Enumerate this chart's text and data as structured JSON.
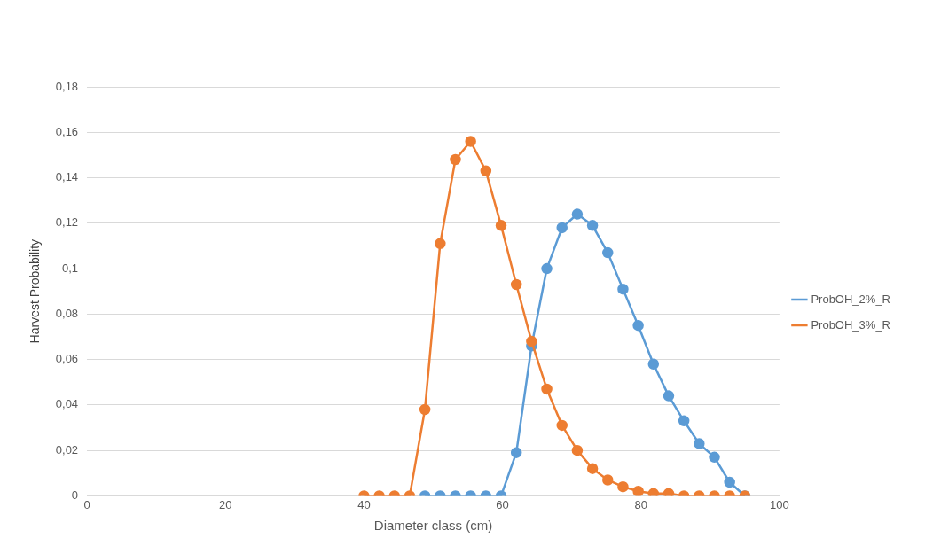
{
  "chart_data": {
    "type": "line",
    "xlabel": "Diameter class (cm)",
    "ylabel": "Harvest Probability",
    "xlim": [
      0,
      100
    ],
    "xticks": [
      0,
      20,
      40,
      60,
      80,
      100
    ],
    "ylim": [
      0,
      0.18
    ],
    "yticks": [
      {
        "value": 0,
        "label": "0"
      },
      {
        "value": 0.02,
        "label": "0,02"
      },
      {
        "value": 0.04,
        "label": "0,04"
      },
      {
        "value": 0.06,
        "label": "0,06"
      },
      {
        "value": 0.08,
        "label": "0,08"
      },
      {
        "value": 0.1,
        "label": "0,1"
      },
      {
        "value": 0.12,
        "label": "0,12"
      },
      {
        "value": 0.14,
        "label": "0,14"
      },
      {
        "value": 0.16,
        "label": "0,16"
      },
      {
        "value": 0.18,
        "label": "0,18"
      }
    ],
    "grid": "y",
    "legend": "right",
    "marker": "circle",
    "line_style": "solid",
    "series": [
      {
        "name": "ProbOH_2%_R",
        "color": "#5b9bd5",
        "x": [
          48.8,
          51,
          53.2,
          55.4,
          57.6,
          59.8,
          62,
          64.2,
          66.4,
          68.6,
          70.8,
          73,
          75.2,
          77.4,
          79.6,
          81.8,
          84,
          86.2,
          88.4,
          90.6,
          92.8,
          95
        ],
        "values": [
          0,
          0,
          0,
          0,
          0,
          0,
          0.019,
          0.066,
          0.1,
          0.118,
          0.124,
          0.119,
          0.107,
          0.091,
          0.075,
          0.058,
          0.044,
          0.033,
          0.023,
          0.017,
          0.006,
          0
        ]
      },
      {
        "name": "ProbOH_3%_R",
        "color": "#ed7d31",
        "x": [
          40,
          42.2,
          44.4,
          46.6,
          48.8,
          51,
          53.2,
          55.4,
          57.6,
          59.8,
          62,
          64.2,
          66.4,
          68.6,
          70.8,
          73,
          75.2,
          77.4,
          79.6,
          81.8,
          84,
          86.2,
          88.4,
          90.6,
          92.8,
          95
        ],
        "values": [
          0,
          0,
          0,
          0,
          0.038,
          0.111,
          0.148,
          0.156,
          0.143,
          0.119,
          0.093,
          0.068,
          0.047,
          0.031,
          0.02,
          0.012,
          0.007,
          0.004,
          0.002,
          0.001,
          0.001,
          0,
          0,
          0,
          0,
          0
        ]
      }
    ]
  }
}
